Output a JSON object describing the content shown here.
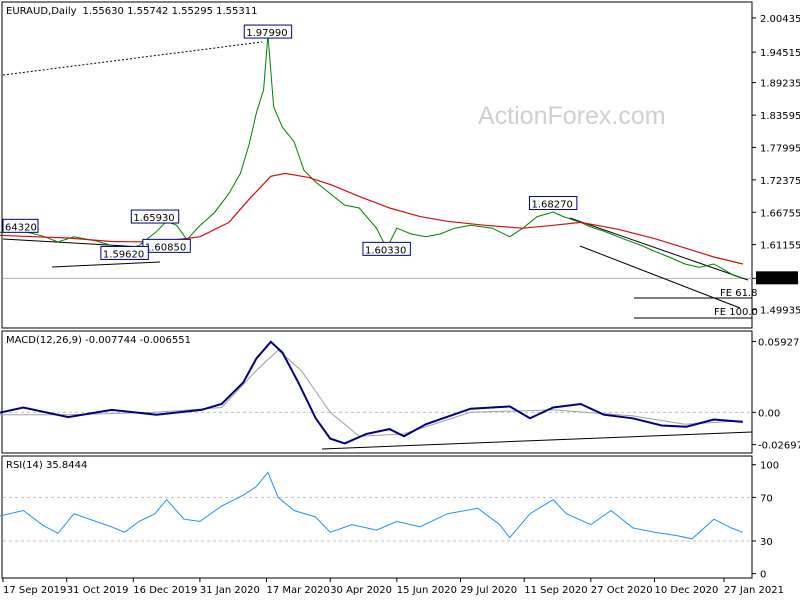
{
  "header": {
    "symbol": "EURAUD,Daily",
    "ohlc": "1.55630 1.55742 1.55295 1.55311"
  },
  "watermark": "ActionForex.com",
  "colors": {
    "price": "#008000",
    "ma": "#d01010",
    "macd": "#000080",
    "signal": "#a0a0a0",
    "rsi": "#1e90ff",
    "trend": "#000000"
  },
  "chart_data": [
    {
      "type": "line",
      "panel": "price",
      "title": "EURAUD,Daily",
      "ylim": [
        1.467,
        2.032
      ],
      "y_ticks": [
        "2.00435",
        "1.94515",
        "1.89235",
        "1.83595",
        "1.77995",
        "1.72375",
        "1.66755",
        "1.61155",
        "1.55311",
        "1.49935"
      ],
      "y_tick_values": [
        2.00435,
        1.94515,
        1.89235,
        1.83595,
        1.77995,
        1.72375,
        1.66755,
        1.61155,
        1.5531,
        1.49935
      ],
      "current_price": "1.55311",
      "x_labels": [
        "17 Sep 2019",
        "31 Oct 2019",
        "16 Dec 2019",
        "31 Jan 2020",
        "17 Mar 2020",
        "30 Apr 2020",
        "15 Jun 2020",
        "29 Jul 2020",
        "11 Sep 2020",
        "27 Oct 2020",
        "10 Dec 2020",
        "27 Jan 2021"
      ],
      "x_label_dates": [
        "2019-09-17",
        "2019-10-31",
        "2019-12-16",
        "2020-01-31",
        "2020-03-17",
        "2020-04-30",
        "2020-06-15",
        "2020-07-29",
        "2020-09-11",
        "2020-10-27",
        "2020-12-10",
        "2021-01-27"
      ],
      "series": [
        {
          "role": "price",
          "points": [
            [
              "2019-09-01",
              1.632
            ],
            [
              "2019-09-10",
              1.628
            ],
            [
              "2019-09-20",
              1.637
            ],
            [
              "2019-10-01",
              1.635
            ],
            [
              "2019-10-15",
              1.626
            ],
            [
              "2019-10-25",
              1.616
            ],
            [
              "2019-11-05",
              1.625
            ],
            [
              "2019-11-20",
              1.618
            ],
            [
              "2019-12-01",
              1.61
            ],
            [
              "2019-12-10",
              1.603
            ],
            [
              "2019-12-20",
              1.61
            ],
            [
              "2019-12-31",
              1.632
            ],
            [
              "2020-01-08",
              1.652
            ],
            [
              "2020-01-15",
              1.645
            ],
            [
              "2020-01-22",
              1.62
            ],
            [
              "2020-01-30",
              1.642
            ],
            [
              "2020-02-10",
              1.667
            ],
            [
              "2020-02-20",
              1.7
            ],
            [
              "2020-02-28",
              1.735
            ],
            [
              "2020-03-05",
              1.785
            ],
            [
              "2020-03-10",
              1.84
            ],
            [
              "2020-03-15",
              1.88
            ],
            [
              "2020-03-18",
              1.975
            ],
            [
              "2020-03-22",
              1.85
            ],
            [
              "2020-03-28",
              1.815
            ],
            [
              "2020-04-05",
              1.79
            ],
            [
              "2020-04-12",
              1.74
            ],
            [
              "2020-04-20",
              1.72
            ],
            [
              "2020-04-30",
              1.7
            ],
            [
              "2020-05-10",
              1.68
            ],
            [
              "2020-05-20",
              1.675
            ],
            [
              "2020-06-01",
              1.64
            ],
            [
              "2020-06-08",
              1.605
            ],
            [
              "2020-06-15",
              1.64
            ],
            [
              "2020-06-25",
              1.63
            ],
            [
              "2020-07-05",
              1.625
            ],
            [
              "2020-07-15",
              1.63
            ],
            [
              "2020-07-25",
              1.64
            ],
            [
              "2020-08-05",
              1.645
            ],
            [
              "2020-08-20",
              1.64
            ],
            [
              "2020-09-01",
              1.625
            ],
            [
              "2020-09-10",
              1.64
            ],
            [
              "2020-09-20",
              1.66
            ],
            [
              "2020-10-01",
              1.668
            ],
            [
              "2020-10-08",
              1.66
            ],
            [
              "2020-10-20",
              1.65
            ],
            [
              "2020-10-27",
              1.642
            ],
            [
              "2020-11-05",
              1.635
            ],
            [
              "2020-11-20",
              1.62
            ],
            [
              "2020-12-01",
              1.61
            ],
            [
              "2020-12-10",
              1.6
            ],
            [
              "2020-12-20",
              1.59
            ],
            [
              "2020-12-31",
              1.578
            ],
            [
              "2021-01-10",
              1.572
            ],
            [
              "2021-01-20",
              1.578
            ],
            [
              "2021-01-27",
              1.568
            ],
            [
              "2021-02-03",
              1.558
            ],
            [
              "2021-02-09",
              1.553
            ]
          ]
        },
        {
          "role": "moving-average",
          "points": [
            [
              "2019-09-01",
              1.629
            ],
            [
              "2019-10-01",
              1.626
            ],
            [
              "2019-11-01",
              1.623
            ],
            [
              "2019-12-01",
              1.617
            ],
            [
              "2020-01-01",
              1.616
            ],
            [
              "2020-01-31",
              1.625
            ],
            [
              "2020-02-20",
              1.65
            ],
            [
              "2020-03-05",
              1.69
            ],
            [
              "2020-03-20",
              1.73
            ],
            [
              "2020-03-30",
              1.735
            ],
            [
              "2020-04-15",
              1.728
            ],
            [
              "2020-05-01",
              1.715
            ],
            [
              "2020-05-20",
              1.695
            ],
            [
              "2020-06-10",
              1.675
            ],
            [
              "2020-07-01",
              1.66
            ],
            [
              "2020-07-20",
              1.652
            ],
            [
              "2020-08-15",
              1.645
            ],
            [
              "2020-09-10",
              1.64
            ],
            [
              "2020-10-01",
              1.645
            ],
            [
              "2020-10-20",
              1.65
            ],
            [
              "2020-11-15",
              1.638
            ],
            [
              "2020-12-10",
              1.622
            ],
            [
              "2021-01-01",
              1.605
            ],
            [
              "2021-01-20",
              1.59
            ],
            [
              "2021-02-09",
              1.578
            ]
          ]
        }
      ],
      "annotations": [
        {
          "label": "1.97990",
          "date": "2020-03-18",
          "value": 1.9799
        },
        {
          "label": "1.68270",
          "date": "2020-10-01",
          "value": 1.6827
        },
        {
          "label": "1.65930",
          "date": "2019-12-31",
          "value": 1.6593
        },
        {
          "label": "64320",
          "date": "2019-09-01",
          "value": 1.6432
        },
        {
          "label": "1.60330",
          "date": "2020-06-08",
          "value": 1.6033
        },
        {
          "label": "1.60850",
          "date": "2020-01-08",
          "value": 1.6085
        },
        {
          "label": "1.59620",
          "date": "2019-12-10",
          "value": 1.5962
        }
      ],
      "fib_labels": [
        {
          "label": "FE 61.8",
          "value": 1.549
        },
        {
          "label": "FE 100.0",
          "value": 1.517
        }
      ]
    },
    {
      "type": "line",
      "panel": "macd",
      "title": "MACD(12,26,9) -0.007744 -0.006551",
      "ylim": [
        -0.034,
        0.068
      ],
      "y_ticks": [
        "0.059272",
        "0.00",
        "-0.026978"
      ],
      "y_tick_values": [
        0.059272,
        0.0,
        -0.026978
      ],
      "series": [
        {
          "role": "macd",
          "points": [
            [
              "2019-09-01",
              -0.004
            ],
            [
              "2019-10-01",
              0.004
            ],
            [
              "2019-11-01",
              -0.004
            ],
            [
              "2019-12-01",
              0.002
            ],
            [
              "2020-01-01",
              -0.002
            ],
            [
              "2020-02-01",
              0.002
            ],
            [
              "2020-02-15",
              0.007
            ],
            [
              "2020-03-01",
              0.025
            ],
            [
              "2020-03-10",
              0.045
            ],
            [
              "2020-03-20",
              0.059
            ],
            [
              "2020-03-28",
              0.05
            ],
            [
              "2020-04-08",
              0.025
            ],
            [
              "2020-04-20",
              -0.005
            ],
            [
              "2020-04-30",
              -0.022
            ],
            [
              "2020-05-10",
              -0.026
            ],
            [
              "2020-05-25",
              -0.018
            ],
            [
              "2020-06-10",
              -0.014
            ],
            [
              "2020-06-20",
              -0.02
            ],
            [
              "2020-07-05",
              -0.01
            ],
            [
              "2020-08-05",
              0.003
            ],
            [
              "2020-09-01",
              0.005
            ],
            [
              "2020-09-15",
              -0.005
            ],
            [
              "2020-10-01",
              0.004
            ],
            [
              "2020-10-20",
              0.007
            ],
            [
              "2020-11-05",
              -0.002
            ],
            [
              "2020-11-25",
              -0.005
            ],
            [
              "2020-12-15",
              -0.011
            ],
            [
              "2021-01-01",
              -0.012
            ],
            [
              "2021-01-20",
              -0.006
            ],
            [
              "2021-02-09",
              -0.008
            ]
          ]
        },
        {
          "role": "signal",
          "points": [
            [
              "2019-09-01",
              -0.002
            ],
            [
              "2019-11-01",
              -0.002
            ],
            [
              "2020-01-01",
              0.0
            ],
            [
              "2020-02-15",
              0.004
            ],
            [
              "2020-03-10",
              0.035
            ],
            [
              "2020-03-25",
              0.052
            ],
            [
              "2020-04-10",
              0.035
            ],
            [
              "2020-04-30",
              0.0
            ],
            [
              "2020-05-20",
              -0.02
            ],
            [
              "2020-06-20",
              -0.018
            ],
            [
              "2020-08-05",
              0.0
            ],
            [
              "2020-10-01",
              0.002
            ],
            [
              "2020-11-25",
              -0.003
            ],
            [
              "2020-12-31",
              -0.01
            ],
            [
              "2021-02-09",
              -0.007
            ]
          ]
        }
      ]
    },
    {
      "type": "line",
      "panel": "rsi",
      "title": "RSI(14) 35.8444",
      "ylim": [
        -4,
        108
      ],
      "y_ticks": [
        "100",
        "70",
        "30",
        "0"
      ],
      "y_tick_values": [
        100,
        70,
        30,
        0
      ],
      "levels": [
        70,
        30
      ],
      "series": [
        {
          "role": "rsi",
          "points": [
            [
              "2019-09-01",
              47
            ],
            [
              "2019-09-15",
              53
            ],
            [
              "2019-10-01",
              58
            ],
            [
              "2019-10-15",
              44
            ],
            [
              "2019-10-25",
              37
            ],
            [
              "2019-11-05",
              55
            ],
            [
              "2019-11-20",
              48
            ],
            [
              "2019-12-01",
              43
            ],
            [
              "2019-12-10",
              38
            ],
            [
              "2019-12-20",
              48
            ],
            [
              "2019-12-31",
              55
            ],
            [
              "2020-01-08",
              68
            ],
            [
              "2020-01-20",
              50
            ],
            [
              "2020-01-31",
              48
            ],
            [
              "2020-02-15",
              62
            ],
            [
              "2020-03-01",
              72
            ],
            [
              "2020-03-10",
              80
            ],
            [
              "2020-03-18",
              93
            ],
            [
              "2020-03-25",
              70
            ],
            [
              "2020-04-05",
              58
            ],
            [
              "2020-04-20",
              52
            ],
            [
              "2020-04-30",
              38
            ],
            [
              "2020-05-15",
              45
            ],
            [
              "2020-06-01",
              40
            ],
            [
              "2020-06-15",
              48
            ],
            [
              "2020-07-01",
              43
            ],
            [
              "2020-07-20",
              55
            ],
            [
              "2020-08-10",
              60
            ],
            [
              "2020-08-25",
              45
            ],
            [
              "2020-09-01",
              33
            ],
            [
              "2020-09-15",
              55
            ],
            [
              "2020-10-01",
              68
            ],
            [
              "2020-10-10",
              55
            ],
            [
              "2020-10-27",
              45
            ],
            [
              "2020-11-10",
              58
            ],
            [
              "2020-11-25",
              42
            ],
            [
              "2020-12-10",
              38
            ],
            [
              "2020-12-25",
              35
            ],
            [
              "2021-01-05",
              32
            ],
            [
              "2021-01-20",
              50
            ],
            [
              "2021-02-01",
              42
            ],
            [
              "2021-02-09",
              38
            ]
          ]
        }
      ]
    }
  ]
}
